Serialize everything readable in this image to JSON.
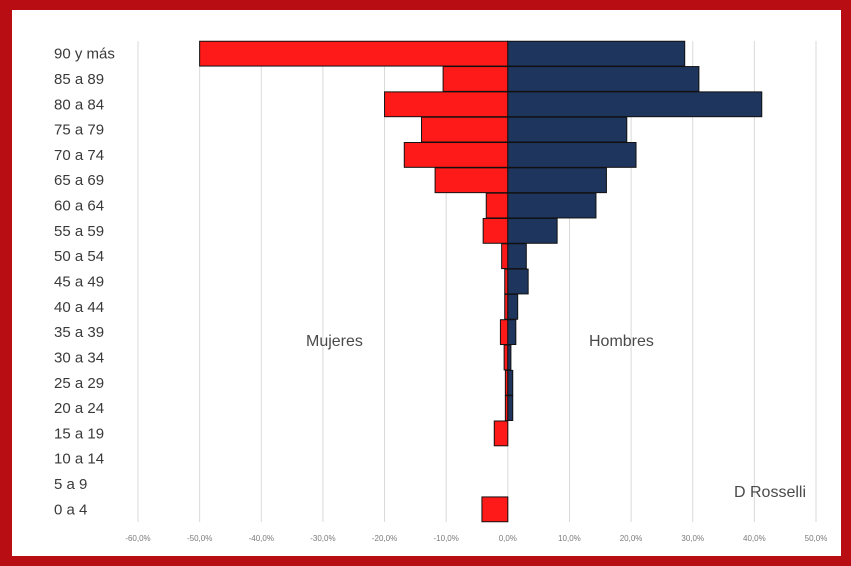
{
  "chart_data": {
    "type": "bar",
    "categories": [
      "90 y más",
      "85 a 89",
      "80 a 84",
      "75 a 79",
      "70 a 74",
      "65 a 69",
      "60 a 64",
      "55 a 59",
      "50 a 54",
      "45 a 49",
      "40 a 44",
      "35 a 39",
      "30 a 34",
      "25 a 29",
      "20 a 24",
      "15 a 19",
      "10 a 14",
      "5 a 9",
      "0 a 4"
    ],
    "series": [
      {
        "name": "Mujeres",
        "color": "#ff1a1a",
        "values": [
          -50,
          -10.5,
          -20,
          -14,
          -16.8,
          -11.8,
          -3.5,
          -4,
          -1,
          -0.5,
          -0.5,
          -1.2,
          -0.6,
          -0.4,
          -0.4,
          -2.2,
          0,
          0,
          -4.2
        ]
      },
      {
        "name": "Hombres",
        "color": "#1e355e",
        "values": [
          28.7,
          31,
          41.2,
          19.3,
          20.8,
          16,
          14.3,
          8,
          3,
          3.3,
          1.6,
          1.3,
          0.5,
          0.8,
          0.8,
          0,
          0,
          0,
          0
        ]
      }
    ],
    "xlim": [
      -60,
      50
    ],
    "xticks": [
      "-60,0%",
      "-50,0%",
      "-40,0%",
      "-30,0%",
      "-20,0%",
      "-10,0%",
      "0,0%",
      "10,0%",
      "20,0%",
      "30,0%",
      "40,0%",
      "50,0%"
    ],
    "grid": true,
    "annotations": {
      "left": "Mujeres",
      "right": "Hombres",
      "credit": "D Rosselli"
    }
  }
}
